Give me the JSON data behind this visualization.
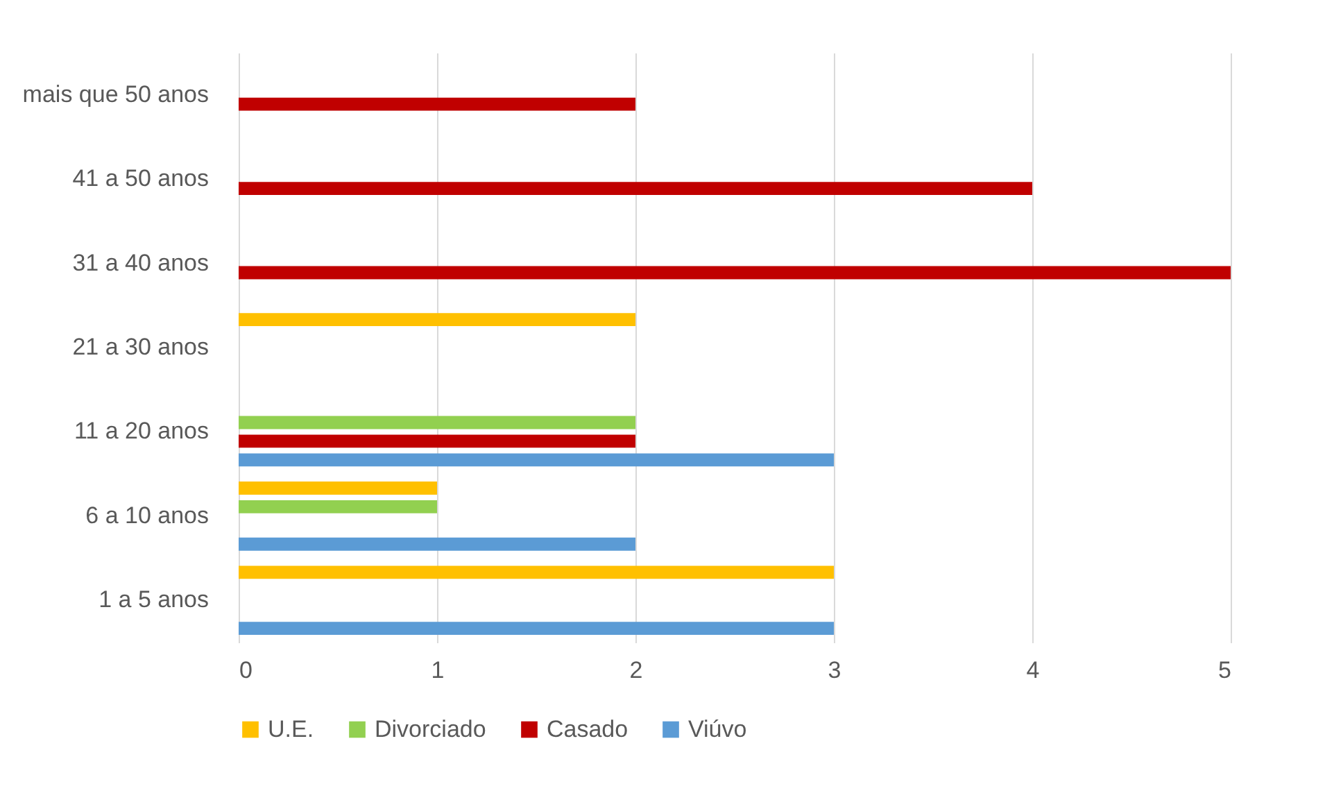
{
  "chart_data": {
    "type": "bar",
    "orientation": "horizontal",
    "categories": [
      "mais que 50 anos",
      "41 a 50 anos",
      "31 a 40 anos",
      "21 a 30 anos",
      "11 a 20 anos",
      "6 a 10 anos",
      "1 a 5 anos"
    ],
    "series": [
      {
        "name": "U.E.",
        "color": "#ffc000",
        "values": [
          null,
          null,
          null,
          2,
          null,
          1,
          3
        ]
      },
      {
        "name": "Divorciado",
        "color": "#92d050",
        "values": [
          null,
          null,
          null,
          null,
          2,
          1,
          null
        ]
      },
      {
        "name": "Casado",
        "color": "#c00000",
        "values": [
          2,
          4,
          5,
          null,
          2,
          null,
          null
        ]
      },
      {
        "name": "Viúvo",
        "color": "#5b9bd5",
        "values": [
          null,
          null,
          null,
          null,
          3,
          2,
          3
        ]
      }
    ],
    "xlim": [
      0,
      5
    ],
    "xticks": [
      0,
      1,
      2,
      3,
      4,
      5
    ],
    "grid": "x",
    "legend": "bottom"
  }
}
